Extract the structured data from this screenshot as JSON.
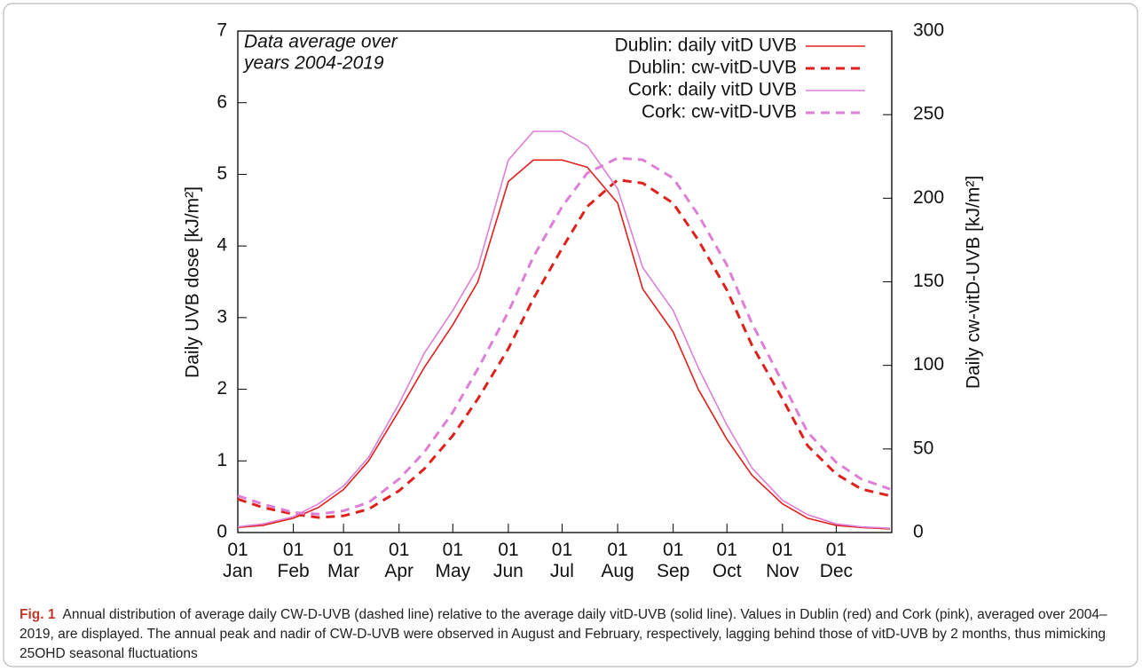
{
  "chart_data": {
    "type": "line",
    "annotation": [
      "Data average over",
      "years 2004-2019"
    ],
    "ylabel": "Daily UVB dose [kJ/m²]",
    "y2label": "Daily cw-vitD-UVB [kJ/m²]",
    "xlim": [
      1,
      366
    ],
    "xticks": [
      {
        "value": 1,
        "label": "01 Jan"
      },
      {
        "value": 32,
        "label": "01 Feb"
      },
      {
        "value": 60,
        "label": "01 Mar"
      },
      {
        "value": 91,
        "label": "01 Apr"
      },
      {
        "value": 121,
        "label": "01 May"
      },
      {
        "value": 152,
        "label": "01 Jun"
      },
      {
        "value": 182,
        "label": "01 Jul"
      },
      {
        "value": 213,
        "label": "01 Aug"
      },
      {
        "value": 244,
        "label": "01 Sep"
      },
      {
        "value": 274,
        "label": "01 Oct"
      },
      {
        "value": 305,
        "label": "01 Nov"
      },
      {
        "value": 335,
        "label": "01 Dec"
      }
    ],
    "ylim": [
      0,
      7
    ],
    "yticks": [
      0,
      1,
      2,
      3,
      4,
      5,
      6,
      7
    ],
    "y2lim": [
      0,
      300
    ],
    "y2ticks": [
      0,
      50,
      100,
      150,
      200,
      250,
      300
    ],
    "x": [
      1,
      15,
      32,
      46,
      60,
      74,
      91,
      105,
      121,
      135,
      152,
      166,
      182,
      196,
      213,
      227,
      244,
      258,
      274,
      288,
      305,
      319,
      335,
      349,
      365
    ],
    "legend": "upper right",
    "series": [
      {
        "name": "Dublin: daily vitD UVB",
        "color": "#e0201c",
        "dashed": false,
        "values": [
          0.07,
          0.1,
          0.2,
          0.35,
          0.6,
          1.0,
          1.7,
          2.3,
          2.9,
          3.5,
          4.9,
          5.2,
          5.2,
          5.1,
          4.6,
          3.4,
          2.8,
          2.0,
          1.3,
          0.8,
          0.4,
          0.2,
          0.1,
          0.07,
          0.05
        ]
      },
      {
        "name": "Dublin: cw-vitD-UVB",
        "color": "#e0201c",
        "dashed": true,
        "axis": "y2",
        "values": [
          20,
          15,
          11,
          9,
          10,
          14,
          25,
          38,
          58,
          80,
          110,
          140,
          170,
          195,
          211,
          209,
          197,
          175,
          145,
          112,
          80,
          52,
          35,
          26,
          22
        ]
      },
      {
        "name": "Cork: daily vitD UVB",
        "color": "#dd7fd6",
        "dashed": false,
        "values": [
          0.08,
          0.12,
          0.22,
          0.4,
          0.65,
          1.05,
          1.8,
          2.5,
          3.1,
          3.7,
          5.2,
          5.6,
          5.6,
          5.4,
          4.8,
          3.7,
          3.1,
          2.3,
          1.5,
          0.9,
          0.45,
          0.25,
          0.12,
          0.08,
          0.06
        ]
      },
      {
        "name": "Cork: cw-vitD-UVB",
        "color": "#dd7fd6",
        "dashed": true,
        "axis": "y2",
        "values": [
          22,
          17,
          12,
          11,
          13,
          18,
          32,
          48,
          72,
          98,
          132,
          165,
          195,
          215,
          224,
          223,
          212,
          190,
          160,
          125,
          90,
          60,
          42,
          32,
          26
        ]
      }
    ]
  },
  "caption": {
    "label": "Fig. 1",
    "text": "Annual distribution of average daily CW-D-UVB (dashed line) relative to the average daily vitD-UVB (solid line). Values in Dublin (red) and Cork (pink), averaged over 2004–2019, are displayed. The annual peak and nadir of CW-D-UVB were observed in August and February, respectively, lagging behind those of vitD-UVB by 2 months, thus mimicking 25OHD seasonal fluctuations"
  }
}
